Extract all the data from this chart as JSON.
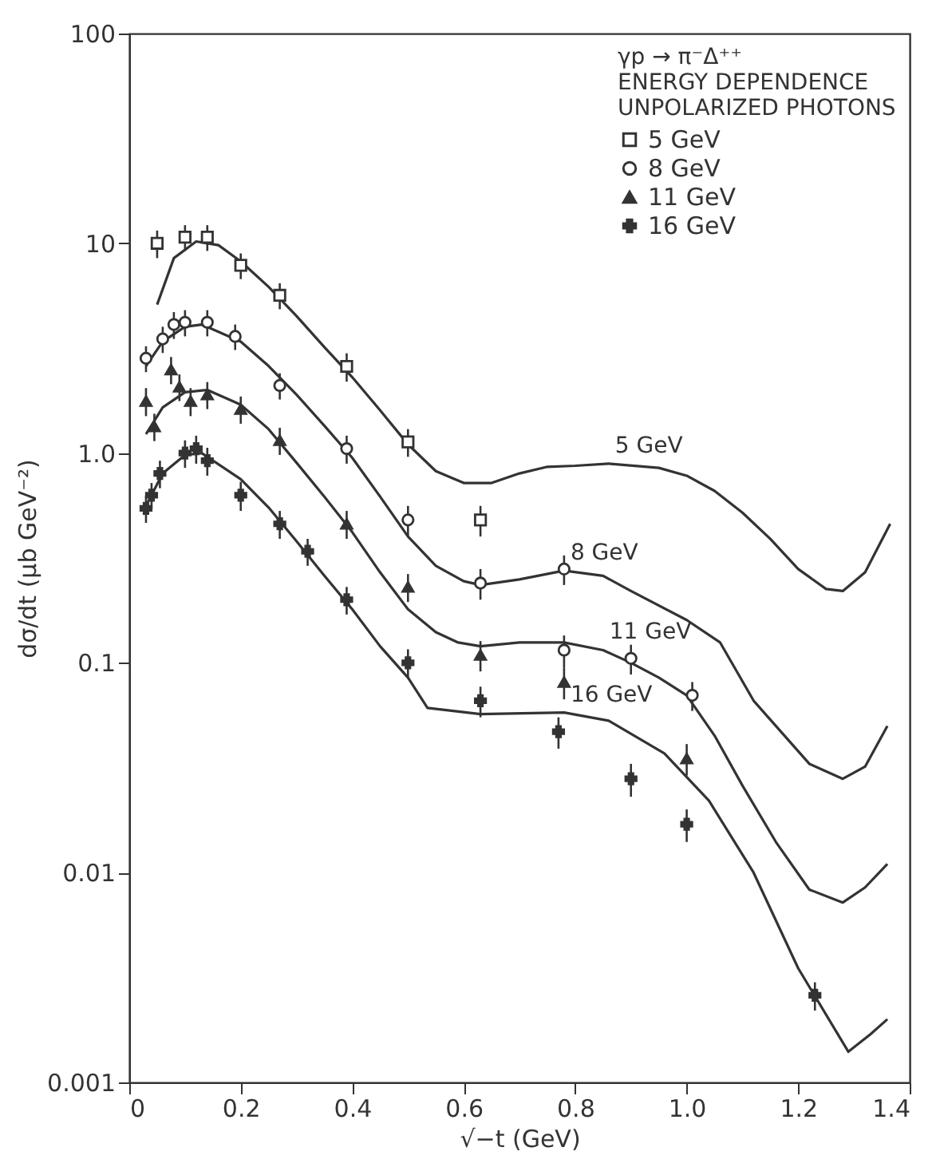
{
  "chart_data": {
    "type": "scatter",
    "xlabel": "√−t  (GeV)",
    "ylabel": "dσ/dt  (μb GeV⁻²)",
    "legend_title": "γp → π⁻Δ⁺⁺\nENERGY DEPENDENCE\nUNPOLARIZED PHOTONS",
    "legend": "top right",
    "log": "y",
    "grid": false,
    "xlim": [
      0,
      1.4
    ],
    "xticks": [
      0,
      0.2,
      0.4,
      0.6,
      0.8,
      {
        "value": 1.0,
        "label": "1.0"
      },
      1.2,
      1.4
    ],
    "ylim": [
      0.001,
      100
    ],
    "yticks": [
      0.001,
      0.01,
      0.1,
      {
        "value": 1,
        "label": "1.0"
      },
      10,
      100
    ],
    "series": [
      {
        "name": "5 GeV",
        "color": "#333333",
        "marker": "square",
        "x": [
          0.05,
          0.1,
          0.14,
          0.2,
          0.27,
          0.39,
          0.5,
          0.63
        ],
        "values": [
          10,
          10.7,
          10.7,
          7.85,
          5.65,
          2.59,
          1.13,
          0.48
        ],
        "errors": [
          1.5,
          1.5,
          1.5,
          1.1,
          0.8,
          0.4,
          0.17,
          0.08
        ]
      },
      {
        "name": "8 GeV",
        "color": "#333333",
        "marker": "circle",
        "x": [
          0.03,
          0.06,
          0.08,
          0.1,
          0.14,
          0.19,
          0.27,
          0.39,
          0.5,
          0.63,
          0.78,
          0.78,
          0.9,
          1.01
        ],
        "values": [
          2.83,
          3.5,
          4.1,
          4.2,
          4.2,
          3.6,
          2.1,
          1.05,
          0.48,
          0.24,
          0.28,
          0.115,
          0.105,
          0.07
        ],
        "errors": [
          0.4,
          0.5,
          0.6,
          0.6,
          0.6,
          0.5,
          0.3,
          0.16,
          0.08,
          0.04,
          0.045,
          0.02,
          0.017,
          0.011
        ]
      },
      {
        "name": "11 GeV",
        "color": "#333333",
        "marker": "triangle",
        "x": [
          0.03,
          0.045,
          0.075,
          0.09,
          0.11,
          0.14,
          0.2,
          0.27,
          0.39,
          0.5,
          0.63,
          0.78,
          1.0
        ],
        "values": [
          1.77,
          1.34,
          2.5,
          2.07,
          1.77,
          1.9,
          1.62,
          1.15,
          0.46,
          0.23,
          0.109,
          0.081,
          0.035
        ],
        "errors": [
          0.27,
          0.2,
          0.37,
          0.3,
          0.27,
          0.28,
          0.24,
          0.17,
          0.07,
          0.035,
          0.018,
          0.014,
          0.006
        ]
      },
      {
        "name": "16 GeV",
        "color": "#333333",
        "marker": "cross",
        "x": [
          0.03,
          0.04,
          0.055,
          0.1,
          0.12,
          0.14,
          0.2,
          0.27,
          0.32,
          0.39,
          0.5,
          0.63,
          0.77,
          0.9,
          1.0,
          1.23
        ],
        "values": [
          0.545,
          0.63,
          0.8,
          1.0,
          1.05,
          0.92,
          0.63,
          0.46,
          0.34,
          0.2,
          0.1,
          0.066,
          0.047,
          0.028,
          0.017,
          0.0026
        ],
        "errors": [
          0.08,
          0.09,
          0.12,
          0.15,
          0.16,
          0.14,
          0.1,
          0.07,
          0.05,
          0.03,
          0.016,
          0.011,
          0.008,
          0.005,
          0.003,
          0.0004
        ]
      },
      {
        "type": "line",
        "name": "5 GeV",
        "color": "#333333",
        "x": [
          0.05,
          0.08,
          0.12,
          0.16,
          0.2,
          0.25,
          0.3,
          0.35,
          0.4,
          0.45,
          0.5,
          0.55,
          0.6,
          0.65,
          0.7,
          0.75,
          0.8,
          0.86,
          0.95,
          1.0,
          1.05,
          1.1,
          1.15,
          1.2,
          1.25,
          1.28,
          1.32,
          1.365
        ],
        "values": [
          5.1,
          8.5,
          10.2,
          9.8,
          8.2,
          6.2,
          4.5,
          3.2,
          2.3,
          1.6,
          1.1,
          0.82,
          0.72,
          0.72,
          0.8,
          0.86,
          0.87,
          0.89,
          0.85,
          0.78,
          0.66,
          0.52,
          0.39,
          0.28,
          0.225,
          0.22,
          0.27,
          0.46
        ]
      },
      {
        "type": "line",
        "name": "8 GeV",
        "color": "#333333",
        "x": [
          0.03,
          0.06,
          0.1,
          0.13,
          0.2,
          0.25,
          0.3,
          0.35,
          0.4,
          0.45,
          0.5,
          0.55,
          0.6,
          0.63,
          0.7,
          0.78,
          0.85,
          0.9,
          1.0,
          1.06,
          1.12,
          1.22,
          1.28,
          1.32,
          1.36
        ],
        "values": [
          2.6,
          3.4,
          4.0,
          4.1,
          3.4,
          2.6,
          1.9,
          1.35,
          0.95,
          0.62,
          0.4,
          0.29,
          0.245,
          0.235,
          0.25,
          0.275,
          0.26,
          0.22,
          0.16,
          0.125,
          0.066,
          0.033,
          0.028,
          0.032,
          0.05
        ]
      },
      {
        "type": "line",
        "name": "11 GeV",
        "color": "#333333",
        "x": [
          0.03,
          0.06,
          0.1,
          0.14,
          0.2,
          0.25,
          0.3,
          0.35,
          0.4,
          0.45,
          0.5,
          0.55,
          0.59,
          0.63,
          0.7,
          0.78,
          0.85,
          0.9,
          0.95,
          1.0,
          1.05,
          1.1,
          1.16,
          1.22,
          1.28,
          1.32,
          1.36
        ],
        "values": [
          1.23,
          1.65,
          1.95,
          2.0,
          1.7,
          1.3,
          0.9,
          0.62,
          0.42,
          0.27,
          0.18,
          0.14,
          0.125,
          0.12,
          0.125,
          0.125,
          0.115,
          0.1,
          0.085,
          0.07,
          0.045,
          0.026,
          0.014,
          0.0083,
          0.0072,
          0.0085,
          0.011
        ]
      },
      {
        "type": "line",
        "name": "16 GeV",
        "color": "#333333",
        "x": [
          0.03,
          0.06,
          0.1,
          0.13,
          0.2,
          0.25,
          0.3,
          0.35,
          0.4,
          0.45,
          0.5,
          0.535,
          0.63,
          0.78,
          0.86,
          0.96,
          1.04,
          1.12,
          1.2,
          1.29,
          1.33,
          1.36
        ],
        "values": [
          0.56,
          0.8,
          0.98,
          1.0,
          0.75,
          0.55,
          0.38,
          0.26,
          0.18,
          0.12,
          0.085,
          0.061,
          0.057,
          0.058,
          0.053,
          0.037,
          0.022,
          0.01,
          0.0035,
          0.0014,
          0.0017,
          0.002
        ]
      }
    ]
  }
}
